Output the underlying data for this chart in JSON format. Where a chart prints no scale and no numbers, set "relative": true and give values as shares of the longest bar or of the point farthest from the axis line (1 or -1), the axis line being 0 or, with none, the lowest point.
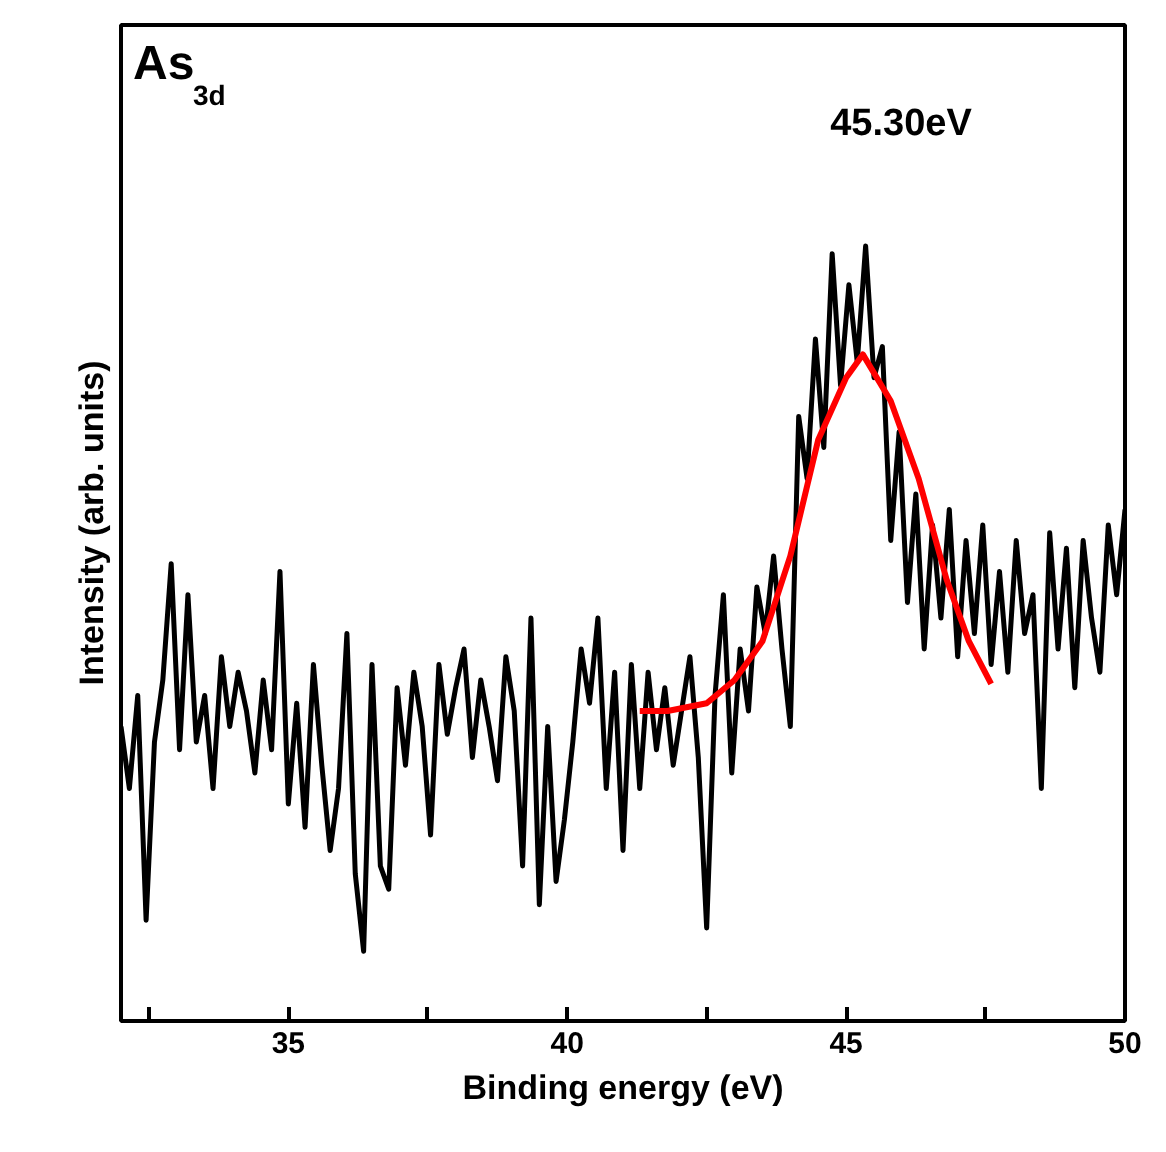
{
  "chart_data": {
    "type": "line",
    "relative": true,
    "xlabel": "Binding energy (eV)",
    "ylabel": "Intensity (arb. units)",
    "xlim": [
      32,
      50
    ],
    "xticks": [
      {
        "value": 32.5,
        "label": null
      },
      35,
      {
        "value": 37.5,
        "label": null
      },
      40,
      {
        "value": 42.5,
        "label": null
      },
      45,
      {
        "value": 47.5,
        "label": null
      },
      50
    ],
    "grid": false,
    "line_style": "solid",
    "marker": "none",
    "annotations": [
      "As$_{3d}$",
      "45.30eV"
    ],
    "series": [
      {
        "color": "#000000",
        "x": [
          32.0,
          32.15,
          32.3,
          32.45,
          32.6,
          32.75,
          32.9,
          33.05,
          33.2,
          33.35,
          33.5,
          33.65,
          33.8,
          33.95,
          34.1,
          34.25,
          34.4,
          34.55,
          34.7,
          34.85,
          35.0,
          35.15,
          35.3,
          35.45,
          35.6,
          35.75,
          35.9,
          36.05,
          36.2,
          36.35,
          36.5,
          36.65,
          36.8,
          36.95,
          37.1,
          37.25,
          37.4,
          37.55,
          37.7,
          37.85,
          38.0,
          38.15,
          38.3,
          38.45,
          38.6,
          38.75,
          38.9,
          39.05,
          39.2,
          39.35,
          39.5,
          39.65,
          39.8,
          39.95,
          40.1,
          40.25,
          40.4,
          40.55,
          40.7,
          40.85,
          41.0,
          41.15,
          41.3,
          41.45,
          41.6,
          41.75,
          41.9,
          42.05,
          42.2,
          42.35,
          42.5,
          42.65,
          42.8,
          42.95,
          43.1,
          43.25,
          43.4,
          43.55,
          43.7,
          43.85,
          44.0,
          44.15,
          44.3,
          44.45,
          44.6,
          44.75,
          44.9,
          45.05,
          45.2,
          45.35,
          45.5,
          45.65,
          45.8,
          45.95,
          46.1,
          46.25,
          46.4,
          46.55,
          46.7,
          46.85,
          47.0,
          47.15,
          47.3,
          47.45,
          47.6,
          47.75,
          47.9,
          48.05,
          48.2,
          48.35,
          48.5,
          48.65,
          48.8,
          48.95,
          49.1,
          49.25,
          49.4,
          49.55,
          49.7,
          49.85,
          50.0
        ],
        "values": [
          0.38,
          0.3,
          0.42,
          0.13,
          0.36,
          0.44,
          0.59,
          0.35,
          0.55,
          0.36,
          0.42,
          0.3,
          0.47,
          0.38,
          0.45,
          0.4,
          0.32,
          0.44,
          0.35,
          0.58,
          0.28,
          0.41,
          0.25,
          0.46,
          0.33,
          0.22,
          0.3,
          0.5,
          0.19,
          0.09,
          0.46,
          0.2,
          0.17,
          0.43,
          0.33,
          0.45,
          0.38,
          0.24,
          0.46,
          0.37,
          0.43,
          0.48,
          0.34,
          0.44,
          0.38,
          0.31,
          0.47,
          0.4,
          0.2,
          0.52,
          0.15,
          0.38,
          0.18,
          0.26,
          0.36,
          0.48,
          0.41,
          0.52,
          0.3,
          0.45,
          0.22,
          0.46,
          0.3,
          0.45,
          0.35,
          0.43,
          0.33,
          0.4,
          0.47,
          0.34,
          0.12,
          0.42,
          0.55,
          0.32,
          0.48,
          0.4,
          0.56,
          0.5,
          0.6,
          0.48,
          0.38,
          0.78,
          0.7,
          0.88,
          0.74,
          0.99,
          0.82,
          0.95,
          0.85,
          1.0,
          0.83,
          0.87,
          0.62,
          0.76,
          0.54,
          0.68,
          0.48,
          0.64,
          0.52,
          0.66,
          0.47,
          0.62,
          0.5,
          0.64,
          0.46,
          0.58,
          0.45,
          0.62,
          0.5,
          0.55,
          0.3,
          0.63,
          0.48,
          0.61,
          0.43,
          0.62,
          0.52,
          0.45,
          0.64,
          0.55,
          0.66
        ]
      },
      {
        "color": "#ff0000",
        "x": [
          41.3,
          41.8,
          42.5,
          43.0,
          43.5,
          44.0,
          44.5,
          45.0,
          45.3,
          45.8,
          46.3,
          46.8,
          47.2,
          47.6
        ],
        "values": [
          0.4,
          0.4,
          0.41,
          0.44,
          0.49,
          0.6,
          0.75,
          0.83,
          0.86,
          0.8,
          0.7,
          0.57,
          0.49,
          0.435
        ]
      }
    ]
  }
}
